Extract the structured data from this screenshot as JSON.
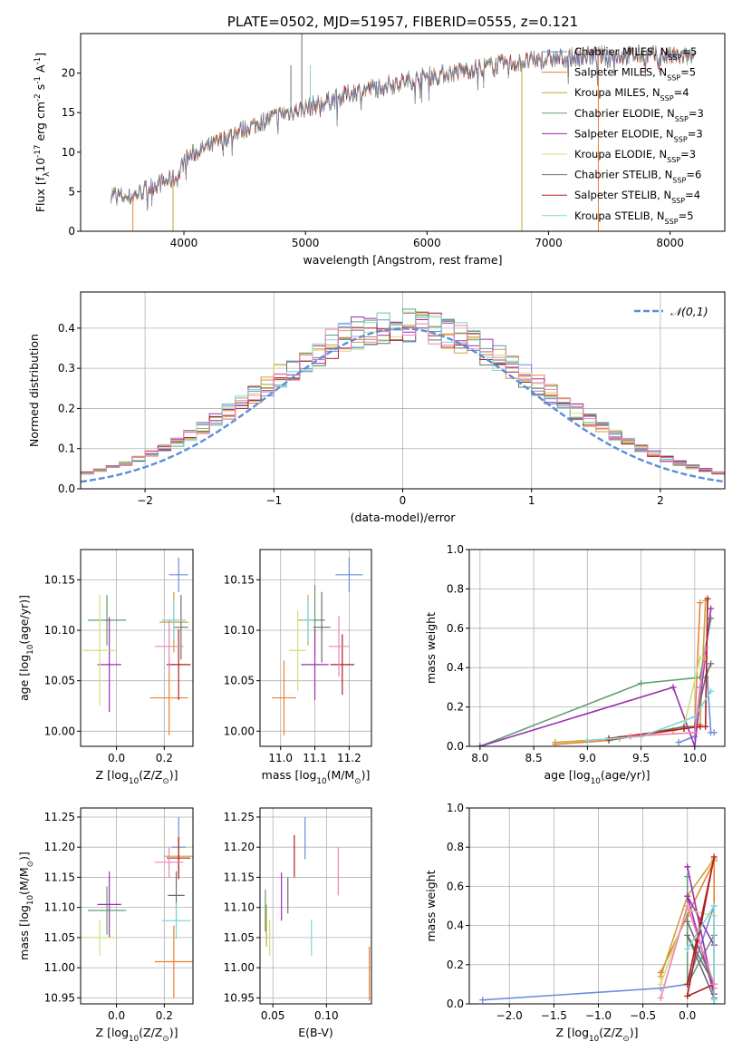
{
  "colors": {
    "chabrier_miles": "#6a8fd8",
    "salpeter_miles": "#ef7f2e",
    "kroupa_miles": "#c8a43a",
    "chabrier_elodie": "#5f9e6e",
    "salpeter_elodie": "#9b2fb0",
    "kroupa_elodie": "#cfe07a",
    "chabrier_stelib": "#6e6e6e",
    "salpeter_stelib": "#b21e1e",
    "kroupa_stelib": "#7fd6d6",
    "pink": "#ee82b8",
    "normal_fit": "#5b8ed6",
    "grid": "#b0b0b0"
  },
  "chart_data": [
    {
      "id": "spectrum",
      "type": "line",
      "title": "PLATE=0502, MJD=51957, FIBERID=0555, z=0.121",
      "xlabel": "wavelength [Angstrom, rest frame]",
      "ylabel": "Flux [f$_\\lambda$10$^{-17}$ erg cm$^{-2}$ s$^{-1}$ A$^{-1}$]",
      "xlim": [
        3150,
        8450
      ],
      "ylim": [
        0,
        25
      ],
      "xticks": [
        4000,
        5000,
        6000,
        7000,
        8000
      ],
      "yticks": [
        0,
        5,
        10,
        15,
        20
      ],
      "grid": false,
      "legend_position": "top-right",
      "continuum": [
        [
          3400,
          4.8
        ],
        [
          3550,
          4.2
        ],
        [
          3650,
          5.0
        ],
        [
          3750,
          5.8
        ],
        [
          3850,
          6.3
        ],
        [
          3950,
          6.8
        ],
        [
          4000,
          9.0
        ],
        [
          4100,
          10.0
        ],
        [
          4250,
          11.0
        ],
        [
          4400,
          12.3
        ],
        [
          4600,
          13.6
        ],
        [
          4800,
          14.8
        ],
        [
          5000,
          15.6
        ],
        [
          5200,
          16.5
        ],
        [
          5400,
          17.6
        ],
        [
          5600,
          18.3
        ],
        [
          5800,
          18.9
        ],
        [
          6000,
          19.6
        ],
        [
          6200,
          20.0
        ],
        [
          6400,
          20.6
        ],
        [
          6600,
          21.1
        ],
        [
          6800,
          21.4
        ],
        [
          7000,
          21.8
        ],
        [
          7200,
          22.0
        ],
        [
          7400,
          22.2
        ],
        [
          7600,
          22.2
        ],
        [
          7800,
          22.3
        ],
        [
          8000,
          22.1
        ],
        [
          8200,
          22.0
        ]
      ],
      "series": [
        {
          "name": "Chabrier MILES, N$_{SSP}$=5"
        },
        {
          "name": "Salpeter MILES, N$_{SSP}$=5"
        },
        {
          "name": "Kroupa MILES, N$_{SSP}$=4"
        },
        {
          "name": "Chabrier ELODIE, N$_{SSP}$=3"
        },
        {
          "name": "Salpeter ELODIE, N$_{SSP}$=3"
        },
        {
          "name": "Kroupa ELODIE, N$_{SSP}$=3"
        },
        {
          "name": "Chabrier STELIB, N$_{SSP}$=6"
        },
        {
          "name": "Salpeter STELIB, N$_{SSP}$=4"
        },
        {
          "name": "Kroupa STELIB, N$_{SSP}$=5"
        }
      ]
    },
    {
      "id": "residuals",
      "type": "line",
      "xlabel": "(data-model)/error",
      "ylabel": "Normed distribution",
      "xlim": [
        -2.5,
        2.5
      ],
      "ylim": [
        0,
        0.49
      ],
      "xticks": [
        -2,
        -1,
        0,
        1,
        2
      ],
      "yticks": [
        0.0,
        0.1,
        0.2,
        0.3,
        0.4
      ],
      "grid": true,
      "legend_position": "top-right",
      "legend": "$\\mathcal{N}(0,1)$",
      "bin_width": 0.1,
      "bin_start": -2.5
    },
    {
      "id": "age_vs_Z",
      "type": "scatter",
      "xlabel": "Z [log$_{10}$($Z/Z_\\odot$)]",
      "ylabel": "age  [log$_{10}$($age/yr$)]",
      "xlim": [
        -0.15,
        0.32
      ],
      "ylim": [
        9.985,
        10.18
      ],
      "xticks": [
        0.0,
        0.2
      ],
      "yticks": [
        10.0,
        10.05,
        10.1,
        10.15
      ],
      "grid": true,
      "points": [
        {
          "x": 0.26,
          "y": 10.155,
          "ex": 0.04,
          "ey": 0.017,
          "color": "chabrier_miles"
        },
        {
          "x": 0.22,
          "y": 10.033,
          "ex": 0.08,
          "ey": 0.037,
          "color": "salpeter_miles"
        },
        {
          "x": 0.24,
          "y": 10.108,
          "ex": 0.06,
          "ey": 0.03,
          "color": "kroupa_miles"
        },
        {
          "x": -0.04,
          "y": 10.11,
          "ex": 0.08,
          "ey": 0.025,
          "color": "chabrier_elodie"
        },
        {
          "x": -0.03,
          "y": 10.066,
          "ex": 0.05,
          "ey": 0.047,
          "color": "salpeter_elodie"
        },
        {
          "x": -0.07,
          "y": 10.08,
          "ex": 0.07,
          "ey": 0.055,
          "color": "kroupa_elodie"
        },
        {
          "x": 0.27,
          "y": 10.103,
          "ex": 0.03,
          "ey": 0.032,
          "color": "chabrier_stelib"
        },
        {
          "x": 0.26,
          "y": 10.066,
          "ex": 0.05,
          "ey": 0.035,
          "color": "salpeter_stelib"
        },
        {
          "x": 0.24,
          "y": 10.11,
          "ex": 0.05,
          "ey": 0.02,
          "color": "kroupa_stelib"
        },
        {
          "x": 0.22,
          "y": 10.084,
          "ex": 0.06,
          "ey": 0.026,
          "color": "pink"
        }
      ]
    },
    {
      "id": "age_vs_mass",
      "type": "scatter",
      "xlabel": "mass [log$_{10}$($M/M_\\odot$)]",
      "ylabel": "",
      "xlim": [
        10.94,
        11.265
      ],
      "ylim": [
        9.985,
        10.18
      ],
      "xticks": [
        11.0,
        11.1,
        11.2
      ],
      "yticks": [
        10.0,
        10.05,
        10.1,
        10.15
      ],
      "grid": true,
      "points": [
        {
          "x": 11.2,
          "y": 10.155,
          "ex": 0.04,
          "ey": 0.017,
          "color": "chabrier_miles"
        },
        {
          "x": 11.01,
          "y": 10.033,
          "ex": 0.035,
          "ey": 0.037,
          "color": "salpeter_miles"
        },
        {
          "x": 11.08,
          "y": 10.11,
          "ex": 0.03,
          "ey": 0.025,
          "color": "kroupa_miles"
        },
        {
          "x": 11.1,
          "y": 10.11,
          "ex": 0.03,
          "ey": 0.035,
          "color": "chabrier_elodie"
        },
        {
          "x": 11.1,
          "y": 10.066,
          "ex": 0.04,
          "ey": 0.035,
          "color": "salpeter_elodie"
        },
        {
          "x": 11.05,
          "y": 10.08,
          "ex": 0.025,
          "ey": 0.04,
          "color": "kroupa_elodie"
        },
        {
          "x": 11.12,
          "y": 10.103,
          "ex": 0.025,
          "ey": 0.035,
          "color": "chabrier_stelib"
        },
        {
          "x": 11.18,
          "y": 10.066,
          "ex": 0.035,
          "ey": 0.03,
          "color": "salpeter_stelib"
        },
        {
          "x": 11.08,
          "y": 10.11,
          "ex": 0.015,
          "ey": 0.02,
          "color": "kroupa_stelib"
        },
        {
          "x": 11.17,
          "y": 10.084,
          "ex": 0.03,
          "ey": 0.03,
          "color": "pink"
        }
      ]
    },
    {
      "id": "mass_vs_Z",
      "type": "scatter",
      "xlabel": "Z [log$_{10}$($Z/Z_\\odot$)]",
      "ylabel": "mass [log$_{10}$($M/M_\\odot$)]",
      "xlim": [
        -0.15,
        0.32
      ],
      "ylim": [
        10.94,
        11.265
      ],
      "xticks": [
        0.0,
        0.2
      ],
      "yticks": [
        10.95,
        11.0,
        11.05,
        11.1,
        11.15,
        11.2,
        11.25
      ],
      "grid": true,
      "points": [
        {
          "x": 0.26,
          "y": 11.2,
          "ex": 0.03,
          "ey": 0.05,
          "color": "chabrier_miles"
        },
        {
          "x": 0.24,
          "y": 11.01,
          "ex": 0.08,
          "ey": 0.06,
          "color": "salpeter_miles"
        },
        {
          "x": 0.26,
          "y": 11.185,
          "ex": 0.06,
          "ey": 0.035,
          "color": "kroupa_miles"
        },
        {
          "x": -0.04,
          "y": 11.095,
          "ex": 0.08,
          "ey": 0.04,
          "color": "chabrier_elodie"
        },
        {
          "x": -0.03,
          "y": 11.105,
          "ex": 0.05,
          "ey": 0.055,
          "color": "salpeter_elodie"
        },
        {
          "x": -0.07,
          "y": 11.05,
          "ex": 0.07,
          "ey": 0.03,
          "color": "kroupa_elodie"
        },
        {
          "x": 0.25,
          "y": 11.12,
          "ex": 0.035,
          "ey": 0.04,
          "color": "chabrier_stelib"
        },
        {
          "x": 0.26,
          "y": 11.182,
          "ex": 0.05,
          "ey": 0.035,
          "color": "salpeter_stelib"
        },
        {
          "x": 0.25,
          "y": 11.078,
          "ex": 0.06,
          "ey": 0.03,
          "color": "kroupa_stelib"
        },
        {
          "x": 0.22,
          "y": 11.175,
          "ex": 0.06,
          "ey": 0.025,
          "color": "pink"
        }
      ]
    },
    {
      "id": "mass_vs_EBV",
      "type": "scatter",
      "xlabel": "E(B-V)",
      "ylabel": "",
      "xlim": [
        0.038,
        0.142
      ],
      "ylim": [
        10.94,
        11.265
      ],
      "xticks": [
        0.05,
        0.1
      ],
      "yticks": [
        10.95,
        11.0,
        11.05,
        11.1,
        11.15,
        11.2,
        11.25
      ],
      "grid": true,
      "points": [
        {
          "x": 0.08,
          "y": 11.215,
          "ex": 0,
          "ey": 0.035,
          "color": "chabrier_miles"
        },
        {
          "x": 0.14,
          "y": 10.99,
          "ex": 0,
          "ey": 0.045,
          "color": "salpeter_miles"
        },
        {
          "x": 0.044,
          "y": 11.07,
          "ex": 0,
          "ey": 0.035,
          "color": "kroupa_miles"
        },
        {
          "x": 0.043,
          "y": 11.095,
          "ex": 0,
          "ey": 0.035,
          "color": "chabrier_elodie"
        },
        {
          "x": 0.058,
          "y": 11.118,
          "ex": 0,
          "ey": 0.04,
          "color": "salpeter_elodie"
        },
        {
          "x": 0.047,
          "y": 11.05,
          "ex": 0,
          "ey": 0.03,
          "color": "kroupa_elodie"
        },
        {
          "x": 0.064,
          "y": 11.12,
          "ex": 0,
          "ey": 0.03,
          "color": "chabrier_stelib"
        },
        {
          "x": 0.07,
          "y": 11.185,
          "ex": 0,
          "ey": 0.035,
          "color": "salpeter_stelib"
        },
        {
          "x": 0.086,
          "y": 11.05,
          "ex": 0,
          "ey": 0.03,
          "color": "kroupa_stelib"
        },
        {
          "x": 0.111,
          "y": 11.16,
          "ex": 0,
          "ey": 0.04,
          "color": "pink"
        }
      ]
    },
    {
      "id": "weight_vs_age",
      "type": "line",
      "xlabel": "age  [log$_{10}$($age/yr$)]",
      "ylabel": "mass weight",
      "xlim": [
        7.9,
        10.28
      ],
      "ylim": [
        0,
        1
      ],
      "xticks": [
        8.0,
        8.5,
        9.0,
        9.5,
        10.0
      ],
      "yticks": [
        0.0,
        0.2,
        0.4,
        0.6,
        0.8,
        1.0
      ],
      "grid": true,
      "series": [
        {
          "color": "chabrier_miles",
          "x": [
            9.85,
            10.0,
            10.05,
            10.1,
            10.15,
            10.18
          ],
          "y": [
            0.02,
            0.05,
            0.3,
            0.5,
            0.07,
            0.07
          ]
        },
        {
          "color": "salpeter_miles",
          "x": [
            8.7,
            9.2,
            9.8,
            10.0,
            10.05
          ],
          "y": [
            0.01,
            0.03,
            0.08,
            0.1,
            0.73
          ]
        },
        {
          "color": "kroupa_miles",
          "x": [
            8.7,
            9.3,
            9.9,
            10.05,
            10.1
          ],
          "y": [
            0.02,
            0.04,
            0.09,
            0.11,
            0.74
          ]
        },
        {
          "color": "chabrier_elodie",
          "x": [
            8.0,
            9.5,
            10.05,
            10.15
          ],
          "y": [
            0.0,
            0.32,
            0.35,
            0.65
          ]
        },
        {
          "color": "salpeter_elodie",
          "x": [
            8.0,
            9.8,
            10.0,
            10.15
          ],
          "y": [
            0.0,
            0.3,
            0.0,
            0.7
          ]
        },
        {
          "color": "kroupa_elodie",
          "x": [
            9.9,
            10.05,
            10.1
          ],
          "y": [
            0.1,
            0.45,
            0.45
          ]
        },
        {
          "color": "chabrier_stelib",
          "x": [
            9.2,
            9.9,
            10.0,
            10.1,
            10.15
          ],
          "y": [
            0.03,
            0.1,
            0.1,
            0.35,
            0.42
          ]
        },
        {
          "color": "salpeter_stelib",
          "x": [
            9.2,
            9.9,
            10.05,
            10.1,
            10.12
          ],
          "y": [
            0.04,
            0.09,
            0.1,
            0.1,
            0.75
          ]
        },
        {
          "color": "kroupa_stelib",
          "x": [
            9.0,
            9.5,
            10.0,
            10.15
          ],
          "y": [
            0.03,
            0.05,
            0.15,
            0.28
          ]
        },
        {
          "color": "pink",
          "x": [
            9.4,
            10.0,
            10.1
          ],
          "y": [
            0.05,
            0.07,
            0.5
          ]
        }
      ]
    },
    {
      "id": "weight_vs_Z",
      "type": "line",
      "xlabel": "Z [log$_{10}$($Z/Z_\\odot$)]",
      "ylabel": "mass weight",
      "xlim": [
        -2.45,
        0.42
      ],
      "ylim": [
        0,
        1
      ],
      "xticks": [
        -2.0,
        -1.5,
        -1.0,
        -0.5,
        0.0
      ],
      "yticks": [
        0.0,
        0.2,
        0.4,
        0.6,
        0.8,
        1.0
      ],
      "grid": true,
      "series": [
        {
          "color": "chabrier_miles",
          "x": [
            -2.3,
            -0.3,
            0.0,
            0.3,
            0.3
          ],
          "y": [
            0.02,
            0.08,
            0.1,
            0.5,
            0.0
          ]
        },
        {
          "color": "salpeter_miles",
          "x": [
            -0.3,
            0.0,
            0.3,
            0.3
          ],
          "y": [
            0.16,
            0.45,
            0.73,
            0.08
          ]
        },
        {
          "color": "kroupa_miles",
          "x": [
            -0.3,
            0.0,
            0.3
          ],
          "y": [
            0.14,
            0.55,
            0.74
          ]
        },
        {
          "color": "chabrier_elodie",
          "x": [
            0.0,
            0.0,
            0.3
          ],
          "y": [
            0.65,
            0.1,
            0.35
          ]
        },
        {
          "color": "salpeter_elodie",
          "x": [
            0.0,
            0.3,
            0.0,
            0.3
          ],
          "y": [
            0.7,
            0.05,
            0.55,
            0.3
          ]
        },
        {
          "color": "kroupa_elodie",
          "x": [
            -0.3,
            0.0,
            0.3
          ],
          "y": [
            0.1,
            0.48,
            0.45
          ]
        },
        {
          "color": "chabrier_stelib",
          "x": [
            0.0,
            0.3,
            0.0,
            0.3
          ],
          "y": [
            0.42,
            0.1,
            0.35,
            0.03
          ]
        },
        {
          "color": "salpeter_stelib",
          "x": [
            0.0,
            0.3,
            0.0,
            0.3
          ],
          "y": [
            0.1,
            0.75,
            0.04,
            0.1
          ]
        },
        {
          "color": "kroupa_stelib",
          "x": [
            0.0,
            0.3,
            0.3
          ],
          "y": [
            0.28,
            0.5,
            0.02
          ]
        },
        {
          "color": "pink",
          "x": [
            -0.3,
            0.0,
            0.3
          ],
          "y": [
            0.03,
            0.5,
            0.1
          ]
        }
      ]
    }
  ]
}
